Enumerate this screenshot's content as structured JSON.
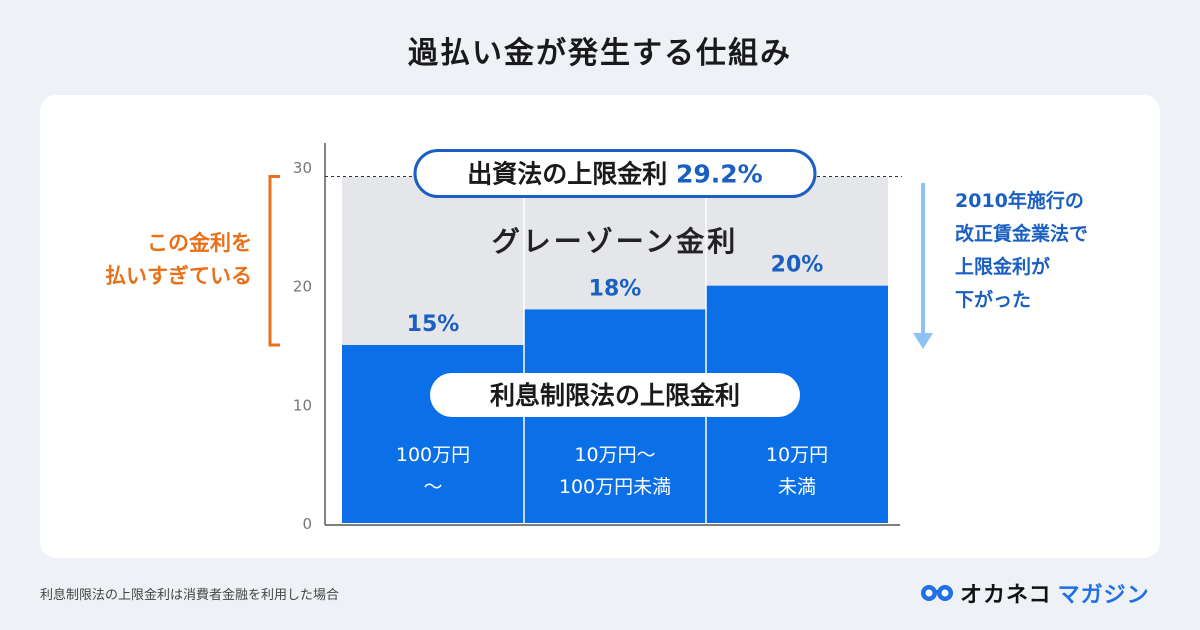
{
  "page": {
    "title": "過払い金が発生する仕組み",
    "footnote": "利息制限法の上限金利は消費者金融を利用した場合"
  },
  "brand": {
    "name_part1": "オカネコ",
    "name_part2": "マガジン",
    "icon": "glasses-logo-icon"
  },
  "colors": {
    "bar_blue": "#0b6fe8",
    "gray_zone": "#e4e6e9",
    "orange": "#e8711a",
    "accent_blue_text": "#1a5fc1",
    "arrow_blue": "#8ec2f5",
    "pill_border": "#1a5fc1"
  },
  "chart_data": {
    "type": "bar",
    "categories": [
      "100万円〜",
      "10万円〜100万円未満",
      "10万円未満"
    ],
    "category_label_lines": [
      [
        "100万円",
        "〜"
      ],
      [
        "10万円〜",
        "100万円未満"
      ],
      [
        "10万円",
        "未満"
      ]
    ],
    "values": [
      15,
      18,
      20
    ],
    "value_labels": [
      "15%",
      "18%",
      "20%"
    ],
    "series": [
      {
        "name": "利息制限法の上限金利",
        "values": [
          15,
          18,
          20
        ]
      }
    ],
    "upper_limit": 29.2,
    "upper_limit_label_text": "出資法の上限金利",
    "upper_limit_label_value": "29.2%",
    "gray_zone_label": "グレーゾーン金利",
    "series_label": "利息制限法の上限金利",
    "ylim": [
      0,
      30
    ],
    "yticks": [
      "0",
      "10",
      "20",
      "30"
    ],
    "left_annotation": [
      "この金利を",
      "払いすぎている"
    ],
    "right_annotation": [
      "2010年施行の",
      "改正賃金業法で",
      "上限金利が",
      "下がった"
    ]
  }
}
